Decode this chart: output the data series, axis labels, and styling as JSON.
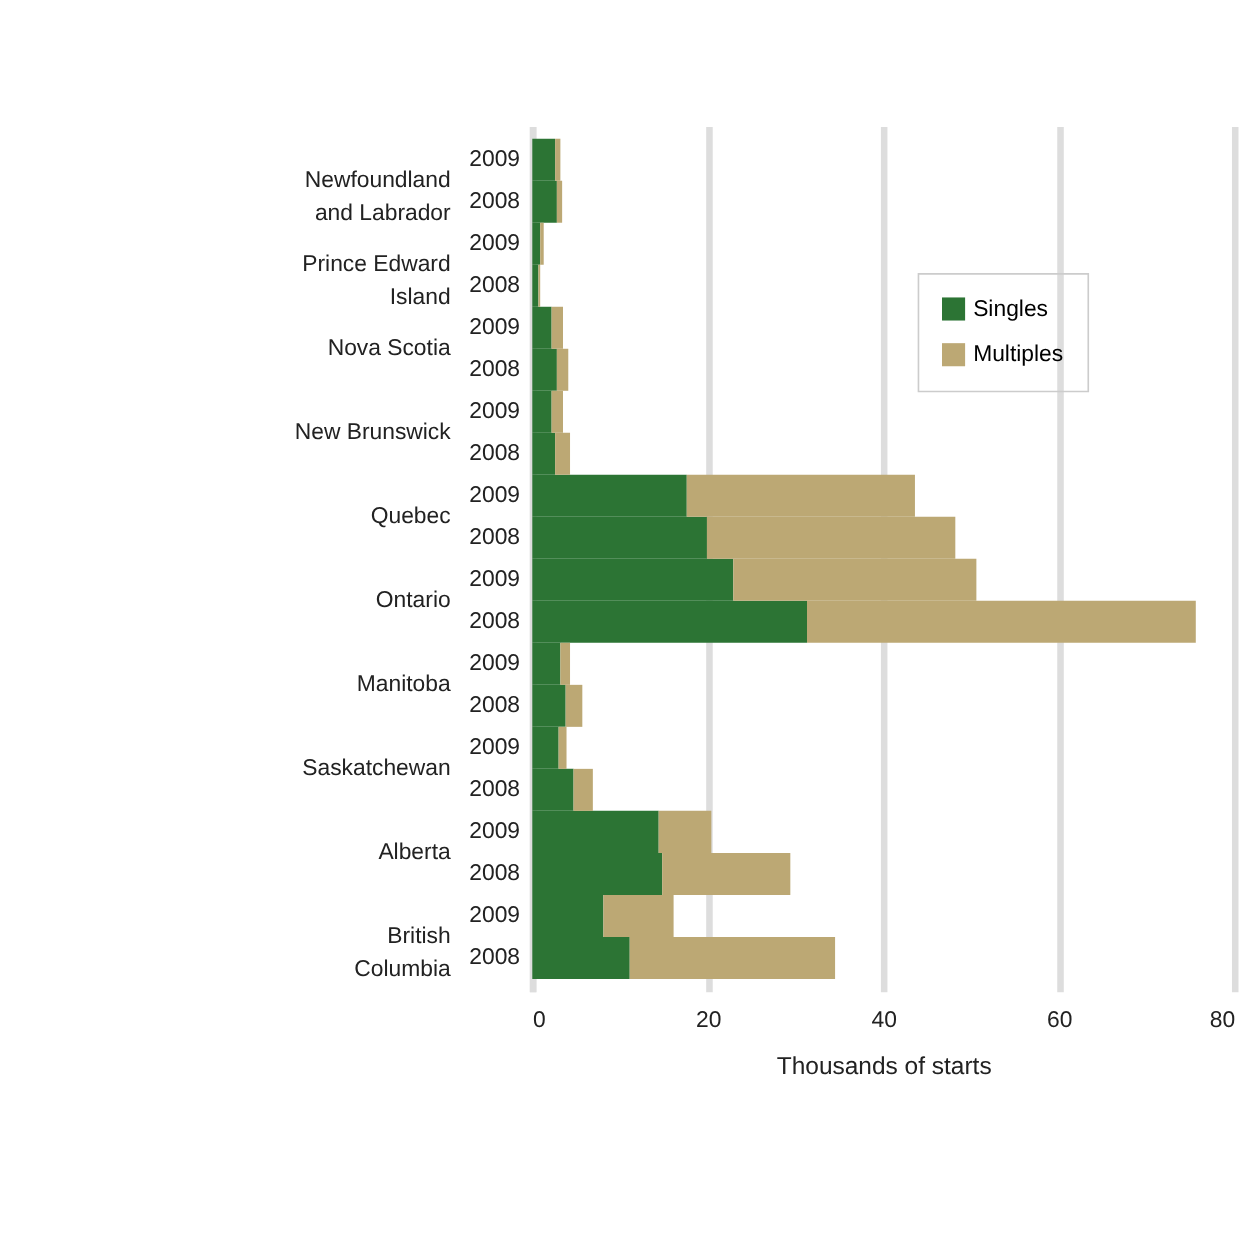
{
  "chart_data": {
    "type": "bar",
    "orientation": "horizontal",
    "stacked": true,
    "categories": [
      "2009",
      "2008",
      "2009",
      "2008",
      "2009",
      "2008",
      "2009",
      "2008",
      "2009",
      "2008",
      "2009",
      "2008",
      "2009",
      "2008",
      "2009",
      "2008",
      "2009",
      "2008",
      "2009",
      "2008"
    ],
    "annotations": [
      "Newfoundland and Labrador",
      "Prince Edward Island",
      "Nova Scotia",
      "New Brunswick",
      "Quebec",
      "Ontario",
      "Manitoba",
      "Saskatchewan",
      "Alberta",
      "British Columbia"
    ],
    "series": [
      {
        "name": "Singles",
        "color": "#2c7434",
        "values": [
          2.6,
          2.8,
          0.9,
          0.7,
          2.2,
          2.8,
          2.2,
          2.6,
          17.6,
          19.9,
          22.9,
          31.3,
          3.2,
          3.8,
          3.0,
          4.7,
          14.4,
          14.8,
          8.1,
          11.1
        ]
      },
      {
        "name": "Multiples",
        "color": "#bca874",
        "values": [
          0.6,
          0.6,
          0.4,
          0.2,
          1.3,
          1.3,
          1.3,
          1.7,
          26.0,
          28.3,
          27.7,
          44.3,
          1.1,
          1.9,
          0.9,
          2.2,
          6.0,
          14.6,
          8.0,
          23.4
        ]
      }
    ],
    "xlabel": "Thousands of starts",
    "xlim": [
      0,
      80
    ],
    "xticks": [
      0,
      20,
      40,
      60,
      80
    ],
    "grid": "x",
    "legend": "top right"
  }
}
